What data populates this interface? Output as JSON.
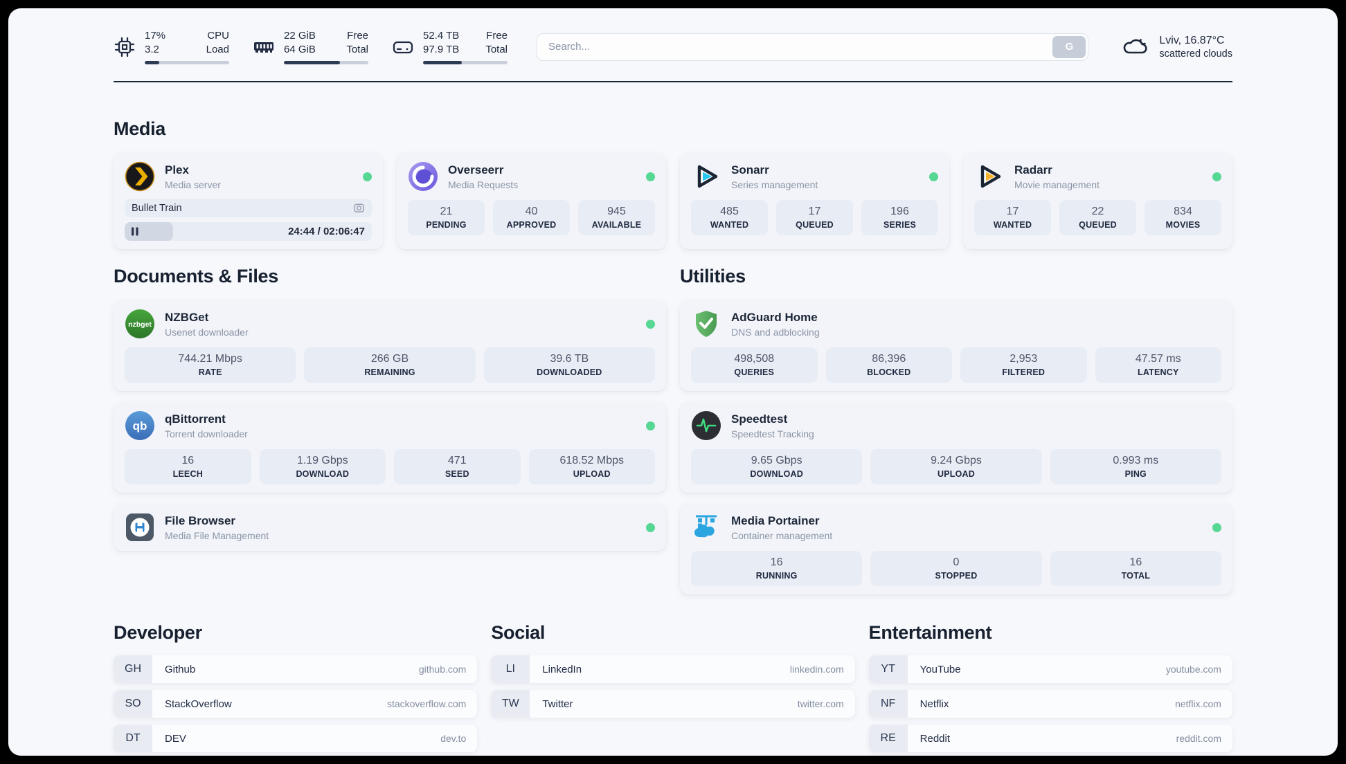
{
  "colors": {
    "status_green": "#56d793",
    "ink": "#1d2636",
    "accent_fill": "#2e3b55"
  },
  "header": {
    "stats": [
      {
        "icon": "cpu-icon",
        "value_primary": "17%",
        "value_secondary": "3.2",
        "label_primary": "CPU",
        "label_secondary": "Load",
        "progress_pct": 17
      },
      {
        "icon": "ram-icon",
        "value_primary": "22 GiB",
        "value_secondary": "64 GiB",
        "label_primary": "Free",
        "label_secondary": "Total",
        "progress_pct": 66
      },
      {
        "icon": "disk-icon",
        "value_primary": "52.4 TB",
        "value_secondary": "97.9 TB",
        "label_primary": "Free",
        "label_secondary": "Total",
        "progress_pct": 46
      }
    ],
    "search": {
      "placeholder": "Search...",
      "button_label": "G"
    },
    "weather": {
      "icon": "cloud-icon",
      "location_temp": "Lviv, 16.87°C",
      "condition": "scattered clouds"
    }
  },
  "media": {
    "title": "Media",
    "plex": {
      "icon": "plex-icon",
      "name": "Plex",
      "subtitle": "Media server",
      "status_dot": true,
      "now_playing": "Bullet Train",
      "time": "24:44 / 02:06:47",
      "progress_pct": 19.5
    },
    "overseerr": {
      "icon": "overseerr-icon",
      "name": "Overseerr",
      "subtitle": "Media Requests",
      "status_dot": true,
      "stats": [
        {
          "value": "21",
          "label": "PENDING"
        },
        {
          "value": "40",
          "label": "APPROVED"
        },
        {
          "value": "945",
          "label": "AVAILABLE"
        }
      ]
    },
    "sonarr": {
      "icon": "sonarr-icon",
      "name": "Sonarr",
      "subtitle": "Series management",
      "status_dot": true,
      "stats": [
        {
          "value": "485",
          "label": "WANTED"
        },
        {
          "value": "17",
          "label": "QUEUED"
        },
        {
          "value": "196",
          "label": "SERIES"
        }
      ]
    },
    "radarr": {
      "icon": "radarr-icon",
      "name": "Radarr",
      "subtitle": "Movie management",
      "status_dot": true,
      "stats": [
        {
          "value": "17",
          "label": "WANTED"
        },
        {
          "value": "22",
          "label": "QUEUED"
        },
        {
          "value": "834",
          "label": "MOVIES"
        }
      ]
    }
  },
  "documents": {
    "title": "Documents & Files",
    "nzbget": {
      "icon": "nzbget-icon",
      "name": "NZBGet",
      "subtitle": "Usenet downloader",
      "status_dot": true,
      "stats": [
        {
          "value": "744.21 Mbps",
          "label": "RATE"
        },
        {
          "value": "266 GB",
          "label": "REMAINING"
        },
        {
          "value": "39.6 TB",
          "label": "DOWNLOADED"
        }
      ]
    },
    "qbittorrent": {
      "icon": "qbittorrent-icon",
      "name": "qBittorrent",
      "subtitle": "Torrent downloader",
      "status_dot": true,
      "stats": [
        {
          "value": "16",
          "label": "LEECH"
        },
        {
          "value": "1.19 Gbps",
          "label": "DOWNLOAD"
        },
        {
          "value": "471",
          "label": "SEED"
        },
        {
          "value": "618.52 Mbps",
          "label": "UPLOAD"
        }
      ]
    },
    "filebrowser": {
      "icon": "filebrowser-icon",
      "name": "File Browser",
      "subtitle": "Media File Management",
      "status_dot": true
    }
  },
  "utilities": {
    "title": "Utilities",
    "adguard": {
      "icon": "adguard-icon",
      "name": "AdGuard Home",
      "subtitle": "DNS and adblocking",
      "status_dot": false,
      "stats": [
        {
          "value": "498,508",
          "label": "QUERIES"
        },
        {
          "value": "86,396",
          "label": "BLOCKED"
        },
        {
          "value": "2,953",
          "label": "FILTERED"
        },
        {
          "value": "47.57 ms",
          "label": "LATENCY"
        }
      ]
    },
    "speedtest": {
      "icon": "speedtest-icon",
      "name": "Speedtest",
      "subtitle": "Speedtest Tracking",
      "status_dot": false,
      "stats": [
        {
          "value": "9.65 Gbps",
          "label": "DOWNLOAD"
        },
        {
          "value": "9.24 Gbps",
          "label": "UPLOAD"
        },
        {
          "value": "0.993 ms",
          "label": "PING"
        }
      ]
    },
    "portainer": {
      "icon": "portainer-icon",
      "name": "Media Portainer",
      "subtitle": "Container management",
      "status_dot": true,
      "stats": [
        {
          "value": "16",
          "label": "RUNNING"
        },
        {
          "value": "0",
          "label": "STOPPED"
        },
        {
          "value": "16",
          "label": "TOTAL"
        }
      ]
    }
  },
  "links": {
    "developer": {
      "title": "Developer",
      "items": [
        {
          "abbr": "GH",
          "name": "Github",
          "url": "github.com"
        },
        {
          "abbr": "SO",
          "name": "StackOverflow",
          "url": "stackoverflow.com"
        },
        {
          "abbr": "DT",
          "name": "DEV",
          "url": "dev.to"
        }
      ]
    },
    "social": {
      "title": "Social",
      "items": [
        {
          "abbr": "LI",
          "name": "LinkedIn",
          "url": "linkedin.com"
        },
        {
          "abbr": "TW",
          "name": "Twitter",
          "url": "twitter.com"
        }
      ]
    },
    "entertainment": {
      "title": "Entertainment",
      "items": [
        {
          "abbr": "YT",
          "name": "YouTube",
          "url": "youtube.com"
        },
        {
          "abbr": "NF",
          "name": "Netflix",
          "url": "netflix.com"
        },
        {
          "abbr": "RE",
          "name": "Reddit",
          "url": "reddit.com"
        }
      ]
    }
  }
}
